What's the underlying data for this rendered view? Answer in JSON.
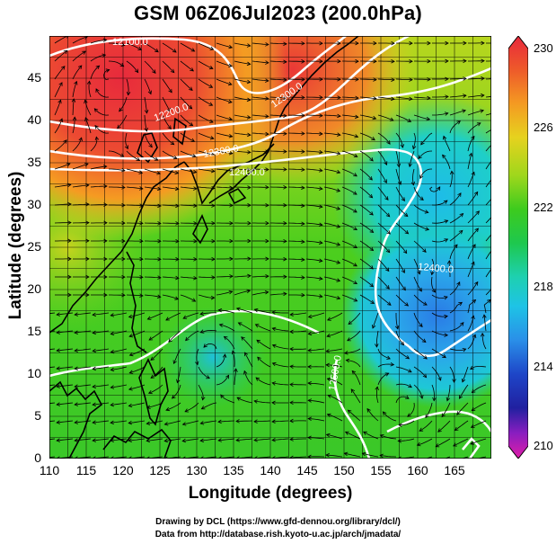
{
  "title": "GSM 06Z06Jul2023 (200.0hPa)",
  "xlabel": "Longitude (degrees)",
  "ylabel": "Latitude  (degrees)",
  "x_ticks": [
    "110",
    "115",
    "120",
    "125",
    "130",
    "135",
    "140",
    "145",
    "150",
    "155",
    "160",
    "165"
  ],
  "y_ticks": [
    "0",
    "5",
    "10",
    "15",
    "20",
    "25",
    "30",
    "35",
    "40",
    "45"
  ],
  "colorbar": {
    "ticks": [
      "230",
      "226",
      "222",
      "218",
      "214",
      "210"
    ],
    "colors": [
      "#e8283c",
      "#ee5a2a",
      "#f49a22",
      "#e6d21e",
      "#9fd71c",
      "#3dcb1e",
      "#1ec84e",
      "#1ed0b0",
      "#1ec3e6",
      "#2a8fe8",
      "#1e46c8",
      "#2020a0",
      "#8a1ec0",
      "#e01ea8"
    ]
  },
  "contour_labels": [
    "12100.0",
    "12200.0",
    "12300.0",
    "12300.0",
    "12400.0",
    "12400.0",
    "12500.0"
  ],
  "credits": {
    "line1": "Drawing by DCL (https://www.gfd-dennou.org/library/dcl/)",
    "line2": "Data from http://database.rish.kyoto-u.ac.jp/arch/jmadata/"
  },
  "chart_data": {
    "type": "heatmap",
    "title": "GSM 06Z06Jul2023 (200.0hPa)",
    "xlabel": "Longitude (degrees)",
    "ylabel": "Latitude  (degrees)",
    "xlim": [
      110,
      170
    ],
    "ylim": [
      0,
      50
    ],
    "color_range": [
      210,
      230
    ],
    "features": [
      {
        "kind": "warm-max",
        "lon": 118,
        "lat": 45.5,
        "value": 230
      },
      {
        "kind": "cold-cyclone",
        "lon": 163,
        "lat": 20,
        "value": 218
      },
      {
        "kind": "cold-cyclone",
        "lon": 162,
        "lat": 32,
        "value": 219.5
      }
    ],
    "contours": [
      {
        "label": "12100.0",
        "lon": 130,
        "lat": 48.5
      },
      {
        "label": "12200.0",
        "lon": 125,
        "lat": 41.5
      },
      {
        "label": "12300.0",
        "lon": 144,
        "lat": 43
      },
      {
        "label": "12300.0",
        "lon": 136,
        "lat": 38
      },
      {
        "label": "12400.0",
        "lon": 159,
        "lat": 24
      },
      {
        "label": "12400.0",
        "lon": 140,
        "lat": 35.5
      },
      {
        "label": "12500.0",
        "lon": 150,
        "lat": 10
      }
    ]
  }
}
